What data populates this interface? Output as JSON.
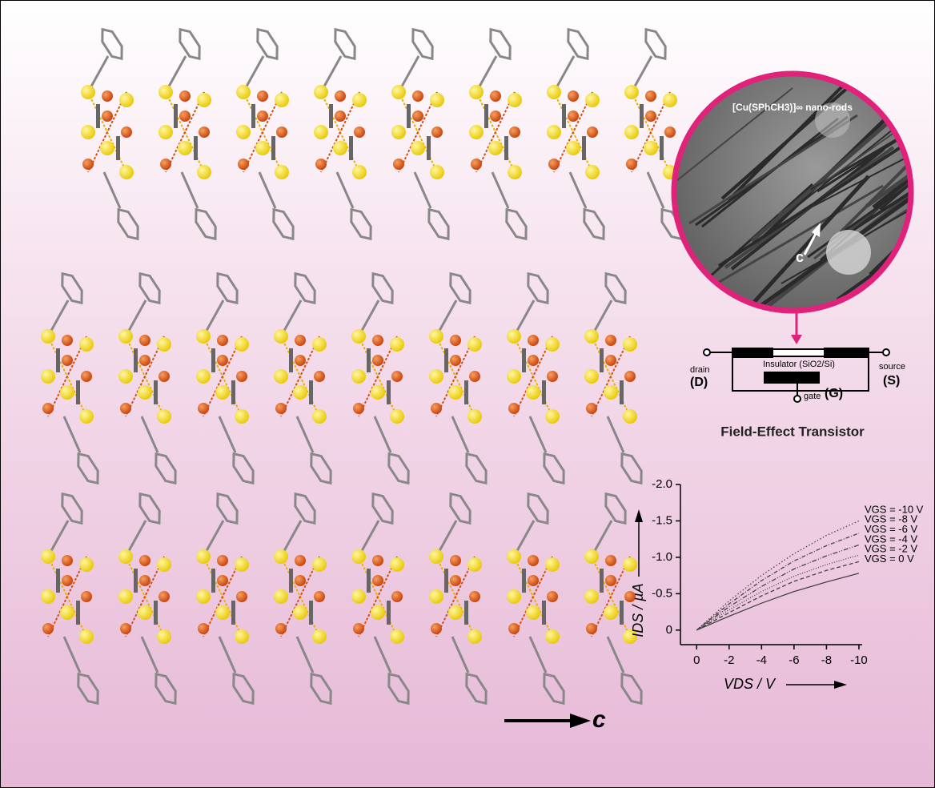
{
  "chart_data": {
    "type": "line",
    "x": [
      0,
      -2,
      -4,
      -6,
      -8,
      -10
    ],
    "xlim": [
      1,
      -10.2
    ],
    "xticks": [
      0,
      -2,
      -4,
      -6,
      -8,
      -10
    ],
    "ylim": [
      0.2,
      -2.0
    ],
    "yticks": [
      {
        "value": -2.0,
        "label": "-2.0"
      },
      -1.5,
      {
        "value": -1.0,
        "label": "-1.0"
      },
      -0.5,
      0
    ],
    "x_label": "VDS / V",
    "y_label": "IDS / µA",
    "series": [
      {
        "name": "VGS = -10 V",
        "color": "#444444",
        "dash": "1.5 2.5",
        "values": [
          0,
          -0.4,
          -0.75,
          -1.05,
          -1.3,
          -1.5
        ]
      },
      {
        "name": "VGS = -8 V",
        "color": "#444444",
        "dash": "5 2 1 2",
        "values": [
          0,
          -0.36,
          -0.68,
          -0.95,
          -1.16,
          -1.33
        ]
      },
      {
        "name": "VGS = -6 V",
        "color": "#444444",
        "dash": "6 2 1 2 1 2",
        "values": [
          0,
          -0.32,
          -0.6,
          -0.84,
          -1.02,
          -1.17
        ]
      },
      {
        "name": "VGS = -4 V",
        "color": "#444444",
        "dash": "1 2",
        "values": [
          0,
          -0.28,
          -0.53,
          -0.74,
          -0.9,
          -1.03
        ]
      },
      {
        "name": "VGS = -2 V",
        "color": "#444444",
        "dash": "5 3",
        "values": [
          0,
          -0.24,
          -0.47,
          -0.67,
          -0.82,
          -0.94
        ]
      },
      {
        "name": "VGS = 0 V",
        "color": "#444444",
        "dash": "",
        "values": [
          0,
          -0.19,
          -0.37,
          -0.53,
          -0.66,
          -0.78
        ]
      }
    ]
  },
  "micrograph": {
    "label": "[Cu(SPhCH3)]∞ nano-rods",
    "axis": "c"
  },
  "device": {
    "drain": "drain",
    "drain_symbol": "(D)",
    "insulator": "Insulator (SiO2/Si)",
    "gate": "gate",
    "gate_symbol": "(G)",
    "source": "source",
    "source_symbol": "(S)",
    "title": "Field-Effect Transistor"
  },
  "structure": {
    "axis": "c"
  }
}
